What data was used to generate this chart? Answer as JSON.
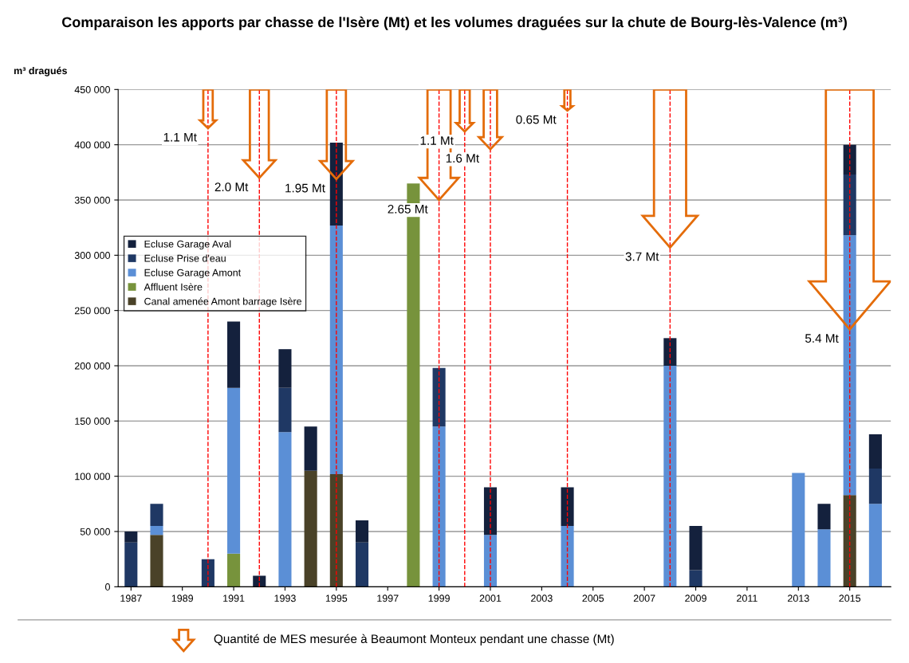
{
  "chart_data": {
    "type": "bar",
    "stacked": true,
    "title": "Comparaison les apports par chasse de l'Isère (Mt) et les volumes draguées sur la chute de Bourg-lès-Valence (m³)",
    "ylabel": "m³ dragués",
    "x": [
      1987,
      1988,
      1989,
      1990,
      1991,
      1992,
      1993,
      1994,
      1995,
      1996,
      1997,
      1998,
      1999,
      2000,
      2001,
      2002,
      2003,
      2004,
      2005,
      2006,
      2007,
      2008,
      2009,
      2010,
      2011,
      2012,
      2013,
      2014,
      2015,
      2016
    ],
    "series": [
      {
        "name": "Canal amenée Amont barrage Isère",
        "color": "#4a4228",
        "values": [
          null,
          47000,
          null,
          null,
          null,
          null,
          null,
          105000,
          102000,
          null,
          null,
          null,
          null,
          null,
          null,
          null,
          null,
          null,
          null,
          null,
          null,
          null,
          null,
          null,
          null,
          null,
          null,
          null,
          83000,
          null
        ]
      },
      {
        "name": "Affluent Isère",
        "color": "#77933c",
        "values": [
          null,
          null,
          null,
          null,
          30000,
          null,
          null,
          null,
          null,
          null,
          null,
          365000,
          null,
          null,
          null,
          null,
          null,
          null,
          null,
          null,
          null,
          null,
          null,
          null,
          null,
          null,
          null,
          null,
          null,
          null
        ]
      },
      {
        "name": "Ecluse Garage Amont",
        "color": "#5b8fd6",
        "values": [
          null,
          8000,
          null,
          null,
          150000,
          null,
          140000,
          null,
          225000,
          null,
          null,
          null,
          145000,
          null,
          47000,
          null,
          null,
          55000,
          null,
          null,
          null,
          200000,
          null,
          null,
          null,
          null,
          103000,
          52000,
          235000,
          75000
        ]
      },
      {
        "name": "Ecluse Prise d'eau",
        "color": "#1f3864",
        "values": [
          40000,
          20000,
          null,
          25000,
          null,
          null,
          40000,
          null,
          null,
          40000,
          null,
          null,
          53000,
          null,
          null,
          null,
          null,
          null,
          null,
          null,
          null,
          null,
          15000,
          null,
          null,
          null,
          null,
          null,
          55000,
          32000
        ]
      },
      {
        "name": "Ecluse Garage Aval",
        "color": "#14213d",
        "values": [
          10000,
          null,
          null,
          null,
          60000,
          10000,
          35000,
          40000,
          75000,
          20000,
          null,
          null,
          null,
          null,
          43000,
          null,
          null,
          35000,
          null,
          null,
          null,
          25000,
          40000,
          null,
          null,
          null,
          null,
          23000,
          27000,
          31000
        ]
      }
    ],
    "xlim": [
      1986.5,
      2016.6
    ],
    "xticks": [
      1987,
      1989,
      1991,
      1993,
      1995,
      1997,
      1999,
      2001,
      2003,
      2005,
      2007,
      2009,
      2011,
      2013,
      2015
    ],
    "ylim": [
      0,
      450000
    ],
    "yticks": [
      {
        "value": 0,
        "label": "0"
      },
      {
        "value": 50000,
        "label": "50 000"
      },
      {
        "value": 100000,
        "label": "100 000"
      },
      {
        "value": 150000,
        "label": "150 000"
      },
      {
        "value": 200000,
        "label": "200 000"
      },
      {
        "value": 250000,
        "label": "250 000"
      },
      {
        "value": 300000,
        "label": "300 000"
      },
      {
        "value": 350000,
        "label": "350 000"
      },
      {
        "value": 400000,
        "label": "400 000"
      },
      {
        "value": 450000,
        "label": "450 000"
      }
    ],
    "grid": "y",
    "legend": "left",
    "ref_lines": [
      {
        "axis": "x",
        "value": 1990,
        "color": "#ff0000",
        "line_style": "dashed"
      },
      {
        "axis": "x",
        "value": 1992,
        "color": "#ff0000",
        "line_style": "dashed"
      },
      {
        "axis": "x",
        "value": 1995,
        "color": "#ff0000",
        "line_style": "dashed"
      },
      {
        "axis": "x",
        "value": 1999,
        "color": "#ff0000",
        "line_style": "dashed"
      },
      {
        "axis": "x",
        "value": 2000,
        "color": "#ff0000",
        "line_style": "dashed"
      },
      {
        "axis": "x",
        "value": 2001,
        "color": "#ff0000",
        "line_style": "dashed"
      },
      {
        "axis": "x",
        "value": 2004,
        "color": "#ff0000",
        "line_style": "dashed"
      },
      {
        "axis": "x",
        "value": 2008,
        "color": "#ff0000",
        "line_style": "dashed"
      },
      {
        "axis": "x",
        "value": 2015,
        "color": "#ff0000",
        "line_style": "dashed"
      }
    ],
    "annotations": [
      {
        "text": "1.1 Mt",
        "x": 1990,
        "y": 415000
      },
      {
        "text": "2.0 Mt",
        "x": 1992,
        "y": 370000
      },
      {
        "text": "1.95 Mt",
        "x": 1995,
        "y": 369000
      },
      {
        "text": "2.65 Mt",
        "x": 1999,
        "y": 350000
      },
      {
        "text": "1.1 Mt",
        "x": 2000,
        "y": 412000
      },
      {
        "text": "1.6 Mt",
        "x": 2001,
        "y": 396000
      },
      {
        "text": "0.65 Mt",
        "x": 2004,
        "y": 431000
      },
      {
        "text": "3.7 Mt",
        "x": 2008,
        "y": 307000
      },
      {
        "text": "5.4 Mt",
        "x": 2015,
        "y": 233000
      },
      "Quantité de MES mesurée à Beaumont Monteux pendant une chasse (Mt)"
    ]
  }
}
